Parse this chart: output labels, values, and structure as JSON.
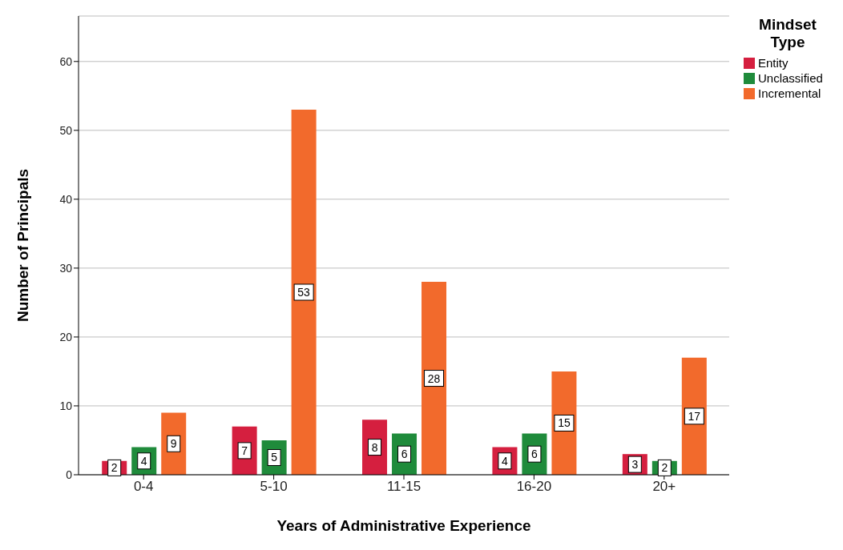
{
  "chart_data": {
    "type": "bar",
    "xlabel": "Years of Administrative Experience",
    "ylabel": "Number of Principals",
    "legend_title": "Mindset Type",
    "categories": [
      "0-4",
      "5-10",
      "11-15",
      "16-20",
      "20+"
    ],
    "series": [
      {
        "name": "Entity",
        "color": "#d51f3f",
        "values": [
          2,
          7,
          8,
          4,
          3
        ]
      },
      {
        "name": "Unclassified",
        "color": "#1f8b3b",
        "values": [
          4,
          5,
          6,
          6,
          2
        ]
      },
      {
        "name": "Incremental",
        "color": "#f26a2c",
        "values": [
          9,
          53,
          28,
          15,
          17
        ]
      }
    ],
    "ylim": [
      0,
      66.6
    ],
    "yticks": [
      0,
      10,
      20,
      30,
      40,
      50,
      60
    ],
    "grid": "y",
    "legend": "top right",
    "data_labels": true
  }
}
